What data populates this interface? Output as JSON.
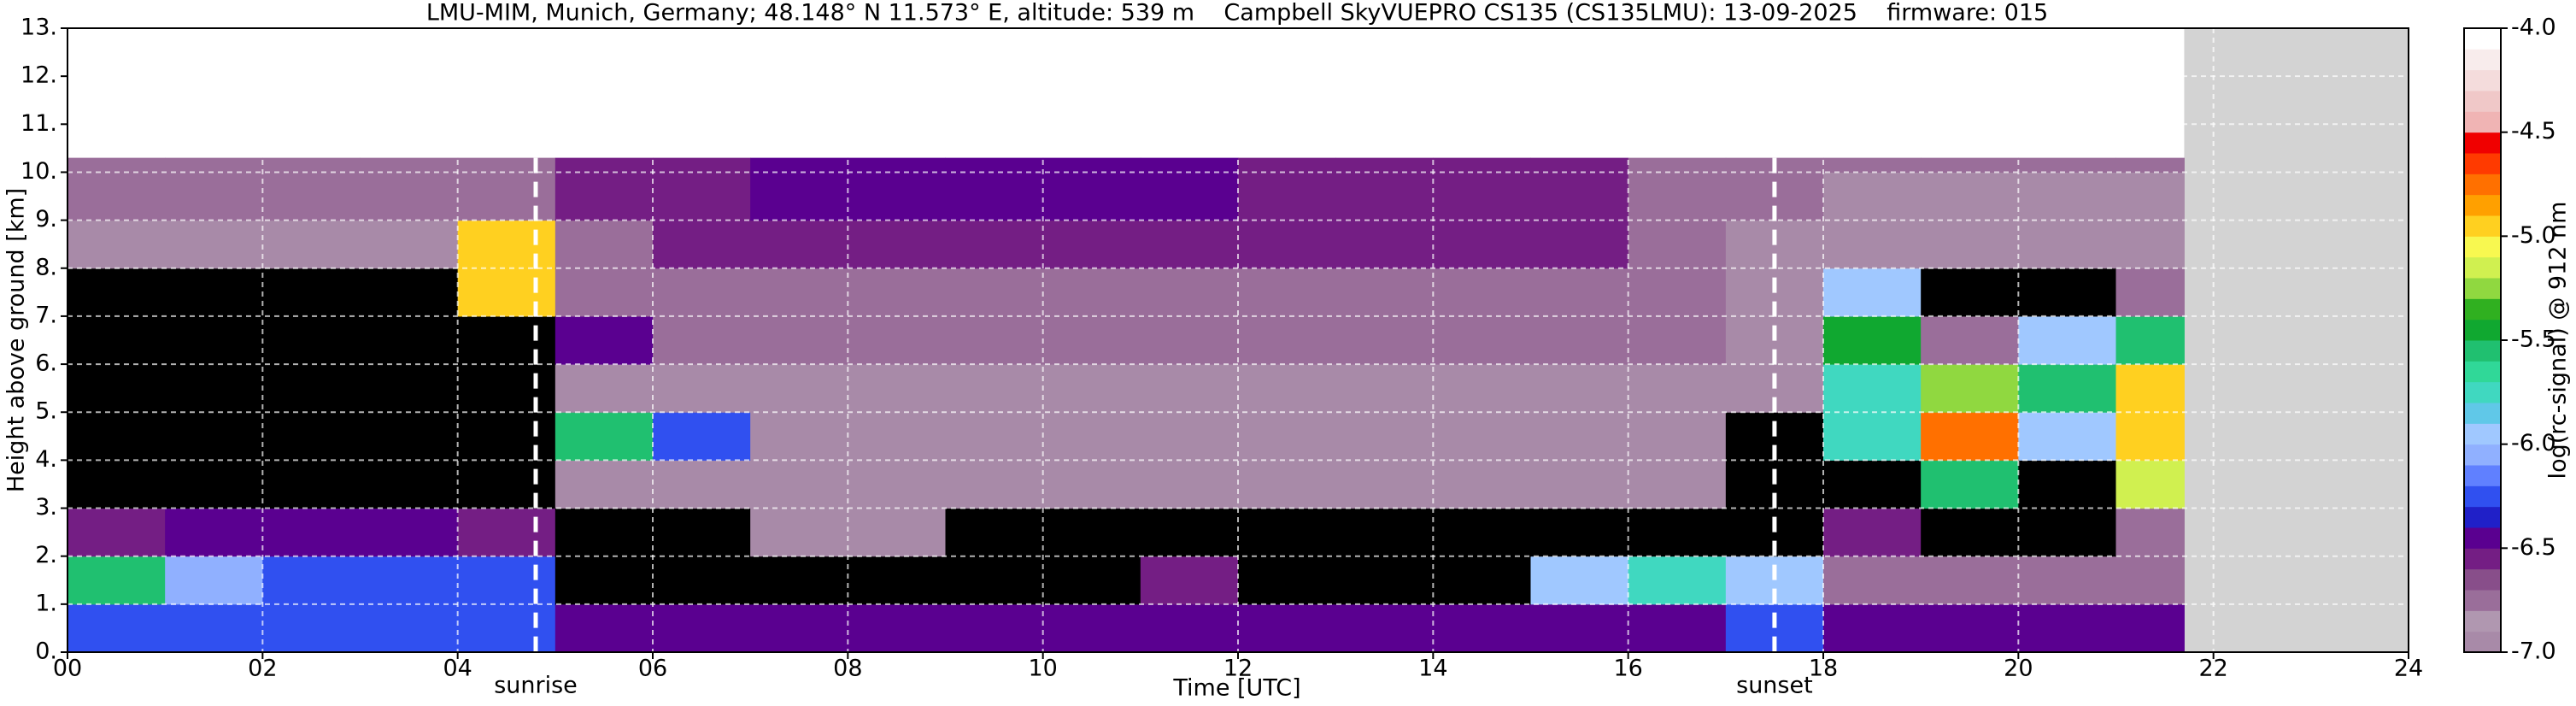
{
  "chart_data": {
    "type": "heatmap",
    "title": "LMU-MIM, Munich, Germany; 48.148° N 11.573° E, altitude: 539 m    Campbell SkyVUEPRO CS135 (CS135LMU): 13-09-2025    firmware: 015",
    "x_label": "Time [UTC]",
    "y_label": "Height above ground [km]",
    "colorbar_label": "log(rc-signal) @ 912 nm",
    "xlim": [
      0,
      24
    ],
    "xticks": [
      {
        "value": 0,
        "label": "00"
      },
      {
        "value": 2,
        "label": "02"
      },
      {
        "value": 4,
        "label": "04"
      },
      {
        "value": 6,
        "label": "06"
      },
      {
        "value": 8,
        "label": "08"
      },
      10,
      12,
      14,
      16,
      18,
      20,
      22,
      24
    ],
    "ylim": [
      0,
      13
    ],
    "yticks": [
      {
        "value": 0,
        "label": "0."
      },
      {
        "value": 1,
        "label": "1."
      },
      {
        "value": 2,
        "label": "2."
      },
      {
        "value": 3,
        "label": "3."
      },
      {
        "value": 4,
        "label": "4."
      },
      {
        "value": 5,
        "label": "5."
      },
      {
        "value": 6,
        "label": "6."
      },
      {
        "value": 7,
        "label": "7."
      },
      {
        "value": 8,
        "label": "8."
      },
      {
        "value": 9,
        "label": "9."
      },
      {
        "value": 10,
        "label": "10."
      },
      {
        "value": 11,
        "label": "11."
      },
      {
        "value": 12,
        "label": "12."
      },
      {
        "value": 13,
        "label": "13."
      }
    ],
    "grid": true,
    "x": [
      0,
      1,
      2,
      3,
      4,
      5,
      6,
      7,
      8,
      9,
      10,
      11,
      12,
      13,
      14,
      15,
      16,
      17,
      18,
      19,
      20,
      21,
      21.7
    ],
    "y": [
      0,
      1,
      2,
      3,
      4,
      5,
      6,
      7,
      8,
      9,
      10,
      10.3
    ],
    "z": [
      [
        -6.2,
        -6.3,
        -6.3,
        -6.3,
        -6.2,
        -6.4,
        -6.4,
        -6.5,
        -6.5,
        -6.5,
        -6.4,
        -6.5,
        -6.5,
        -6.5,
        -6.5,
        -6.4,
        -6.4,
        -6.3,
        -6.4,
        -6.5,
        -6.5,
        -6.5
      ],
      [
        -5.6,
        -6.1,
        -6.2,
        -6.2,
        -6.3,
        -7.1,
        -7.1,
        -7.1,
        -7.1,
        -7.1,
        -7.1,
        -6.6,
        -7.1,
        -7.1,
        -7.1,
        -5.9,
        -5.8,
        -5.9,
        -6.7,
        -6.7,
        -6.7,
        -6.8
      ],
      [
        -6.6,
        -6.4,
        -6.5,
        -6.5,
        -6.6,
        -7.1,
        -7.1,
        -6.9,
        -7.0,
        -7.1,
        -7.1,
        -7.1,
        -7.1,
        -7.1,
        -7.1,
        -7.1,
        -7.1,
        -7.1,
        -6.6,
        -7.2,
        -7.2,
        -6.8
      ],
      [
        -7.2,
        -7.2,
        -7.2,
        -7.2,
        -7.2,
        -7.0,
        -7.0,
        -7.0,
        -7.0,
        -7.0,
        -7.0,
        -7.0,
        -7.0,
        -7.0,
        -7.0,
        -7.0,
        -7.0,
        -7.1,
        -7.2,
        -5.6,
        -7.2,
        -5.2
      ],
      [
        -7.2,
        -7.2,
        -7.2,
        -7.2,
        -7.2,
        -5.6,
        -6.3,
        -7.0,
        -7.0,
        -7.0,
        -7.0,
        -7.0,
        -7.0,
        -7.0,
        -7.0,
        -7.0,
        -7.0,
        -7.1,
        -5.8,
        -4.8,
        -6.0,
        -4.9
      ],
      [
        -7.2,
        -7.2,
        -7.2,
        -7.2,
        -7.2,
        -6.9,
        -6.9,
        -6.9,
        -6.9,
        -6.9,
        -6.9,
        -6.9,
        -6.9,
        -6.9,
        -6.9,
        -6.9,
        -6.9,
        -7.0,
        -5.8,
        -5.3,
        -5.6,
        -5.0
      ],
      [
        -7.1,
        -7.1,
        -7.1,
        -7.1,
        -7.1,
        -6.4,
        -6.8,
        -6.8,
        -6.8,
        -6.8,
        -6.8,
        -6.8,
        -6.8,
        -6.8,
        -6.8,
        -6.8,
        -6.8,
        -7.0,
        -5.5,
        -6.8,
        -5.9,
        -5.6
      ],
      [
        -7.1,
        -7.1,
        -7.1,
        -7.1,
        -4.9,
        -6.8,
        -6.7,
        -6.7,
        -6.7,
        -6.7,
        -6.7,
        -6.7,
        -6.7,
        -6.7,
        -6.7,
        -6.7,
        -6.7,
        -7.0,
        -5.9,
        -7.1,
        -7.1,
        -6.8
      ],
      [
        -7.0,
        -7.0,
        -7.0,
        -7.0,
        -5.0,
        -6.7,
        -6.6,
        -6.6,
        -6.6,
        -6.6,
        -6.6,
        -6.6,
        -6.6,
        -6.6,
        -6.6,
        -6.6,
        -6.7,
        -6.9,
        -7.0,
        -7.0,
        -7.0,
        -6.9
      ],
      [
        -6.8,
        -6.8,
        -6.8,
        -6.8,
        -6.7,
        -6.6,
        -6.6,
        -6.5,
        -6.5,
        -6.5,
        -6.5,
        -6.5,
        -6.6,
        -6.6,
        -6.6,
        -6.6,
        -6.7,
        -6.8,
        -6.9,
        -6.9,
        -6.9,
        -6.9
      ],
      [
        -6.8,
        -6.8,
        -6.8,
        -6.8,
        -6.7,
        -6.6,
        -6.6,
        -6.5,
        -6.5,
        -6.5,
        -6.5,
        -6.5,
        -6.6,
        -6.6,
        -6.6,
        -6.6,
        -6.7,
        -6.8,
        -6.7,
        -6.7,
        -6.8,
        -6.8
      ]
    ],
    "clim": [
      -7,
      -4
    ],
    "cticks": [
      {
        "value": -4,
        "label": "-4.0"
      },
      -4.5,
      {
        "value": -5,
        "label": "-5.0"
      },
      -5.5,
      {
        "value": -6,
        "label": "-6.0"
      },
      -6.5,
      {
        "value": -7,
        "label": "-7.0"
      }
    ],
    "colors": [
      "#a88aa8",
      "#b097b0",
      "#9a6e9a",
      "#884e8a",
      "#741e84",
      "#5a0090",
      "#2020c8",
      "#3050f0",
      "#6080ff",
      "#90b0ff",
      "#a0c8ff",
      "#60c8e8",
      "#40d8c0",
      "#30d898",
      "#20c070",
      "#10a830",
      "#30b020",
      "#90d840",
      "#d0f050",
      "#f8f850",
      "#ffd020",
      "#ffa000",
      "#ff7000",
      "#ff3a00",
      "#f00000",
      "#f0b4b4",
      "#f0c8c8",
      "#f4dcdc",
      "#f8ecec",
      "#ffffff"
    ],
    "under_color": "#000000",
    "nodata_color": "#d3d3d3",
    "annotations": [
      {
        "x": 4.8,
        "label": "sunrise"
      },
      {
        "x": 17.5,
        "label": "sunset"
      }
    ]
  }
}
